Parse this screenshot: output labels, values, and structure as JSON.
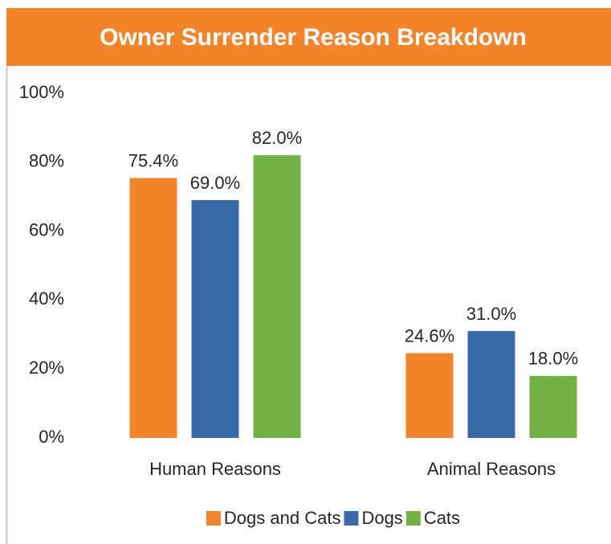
{
  "chart_data": {
    "type": "bar",
    "title": "Owner Surrender Reason Breakdown",
    "categories": [
      "Human Reasons",
      "Animal Reasons"
    ],
    "series": [
      {
        "name": "Dogs and Cats",
        "color": "#f4842a",
        "values": [
          75.4,
          24.6
        ],
        "value_labels": [
          "75.4%",
          "24.6%"
        ]
      },
      {
        "name": "Dogs",
        "color": "#3869a8",
        "values": [
          69.0,
          31.0
        ],
        "value_labels": [
          "69.0%",
          "31.0%"
        ]
      },
      {
        "name": "Cats",
        "color": "#72b043",
        "values": [
          82.0,
          18.0
        ],
        "value_labels": [
          "82.0%",
          "18.0%"
        ]
      }
    ],
    "ylim": [
      0,
      100
    ],
    "yticks": [
      {
        "value": 0,
        "label": "0%"
      },
      {
        "value": 20,
        "label": "20%"
      },
      {
        "value": 40,
        "label": "40%"
      },
      {
        "value": 60,
        "label": "60%"
      },
      {
        "value": 80,
        "label": "80%"
      },
      {
        "value": 100,
        "label": "100%"
      }
    ],
    "grid": false,
    "legend": "bottom",
    "title_background": "#f4842a"
  }
}
